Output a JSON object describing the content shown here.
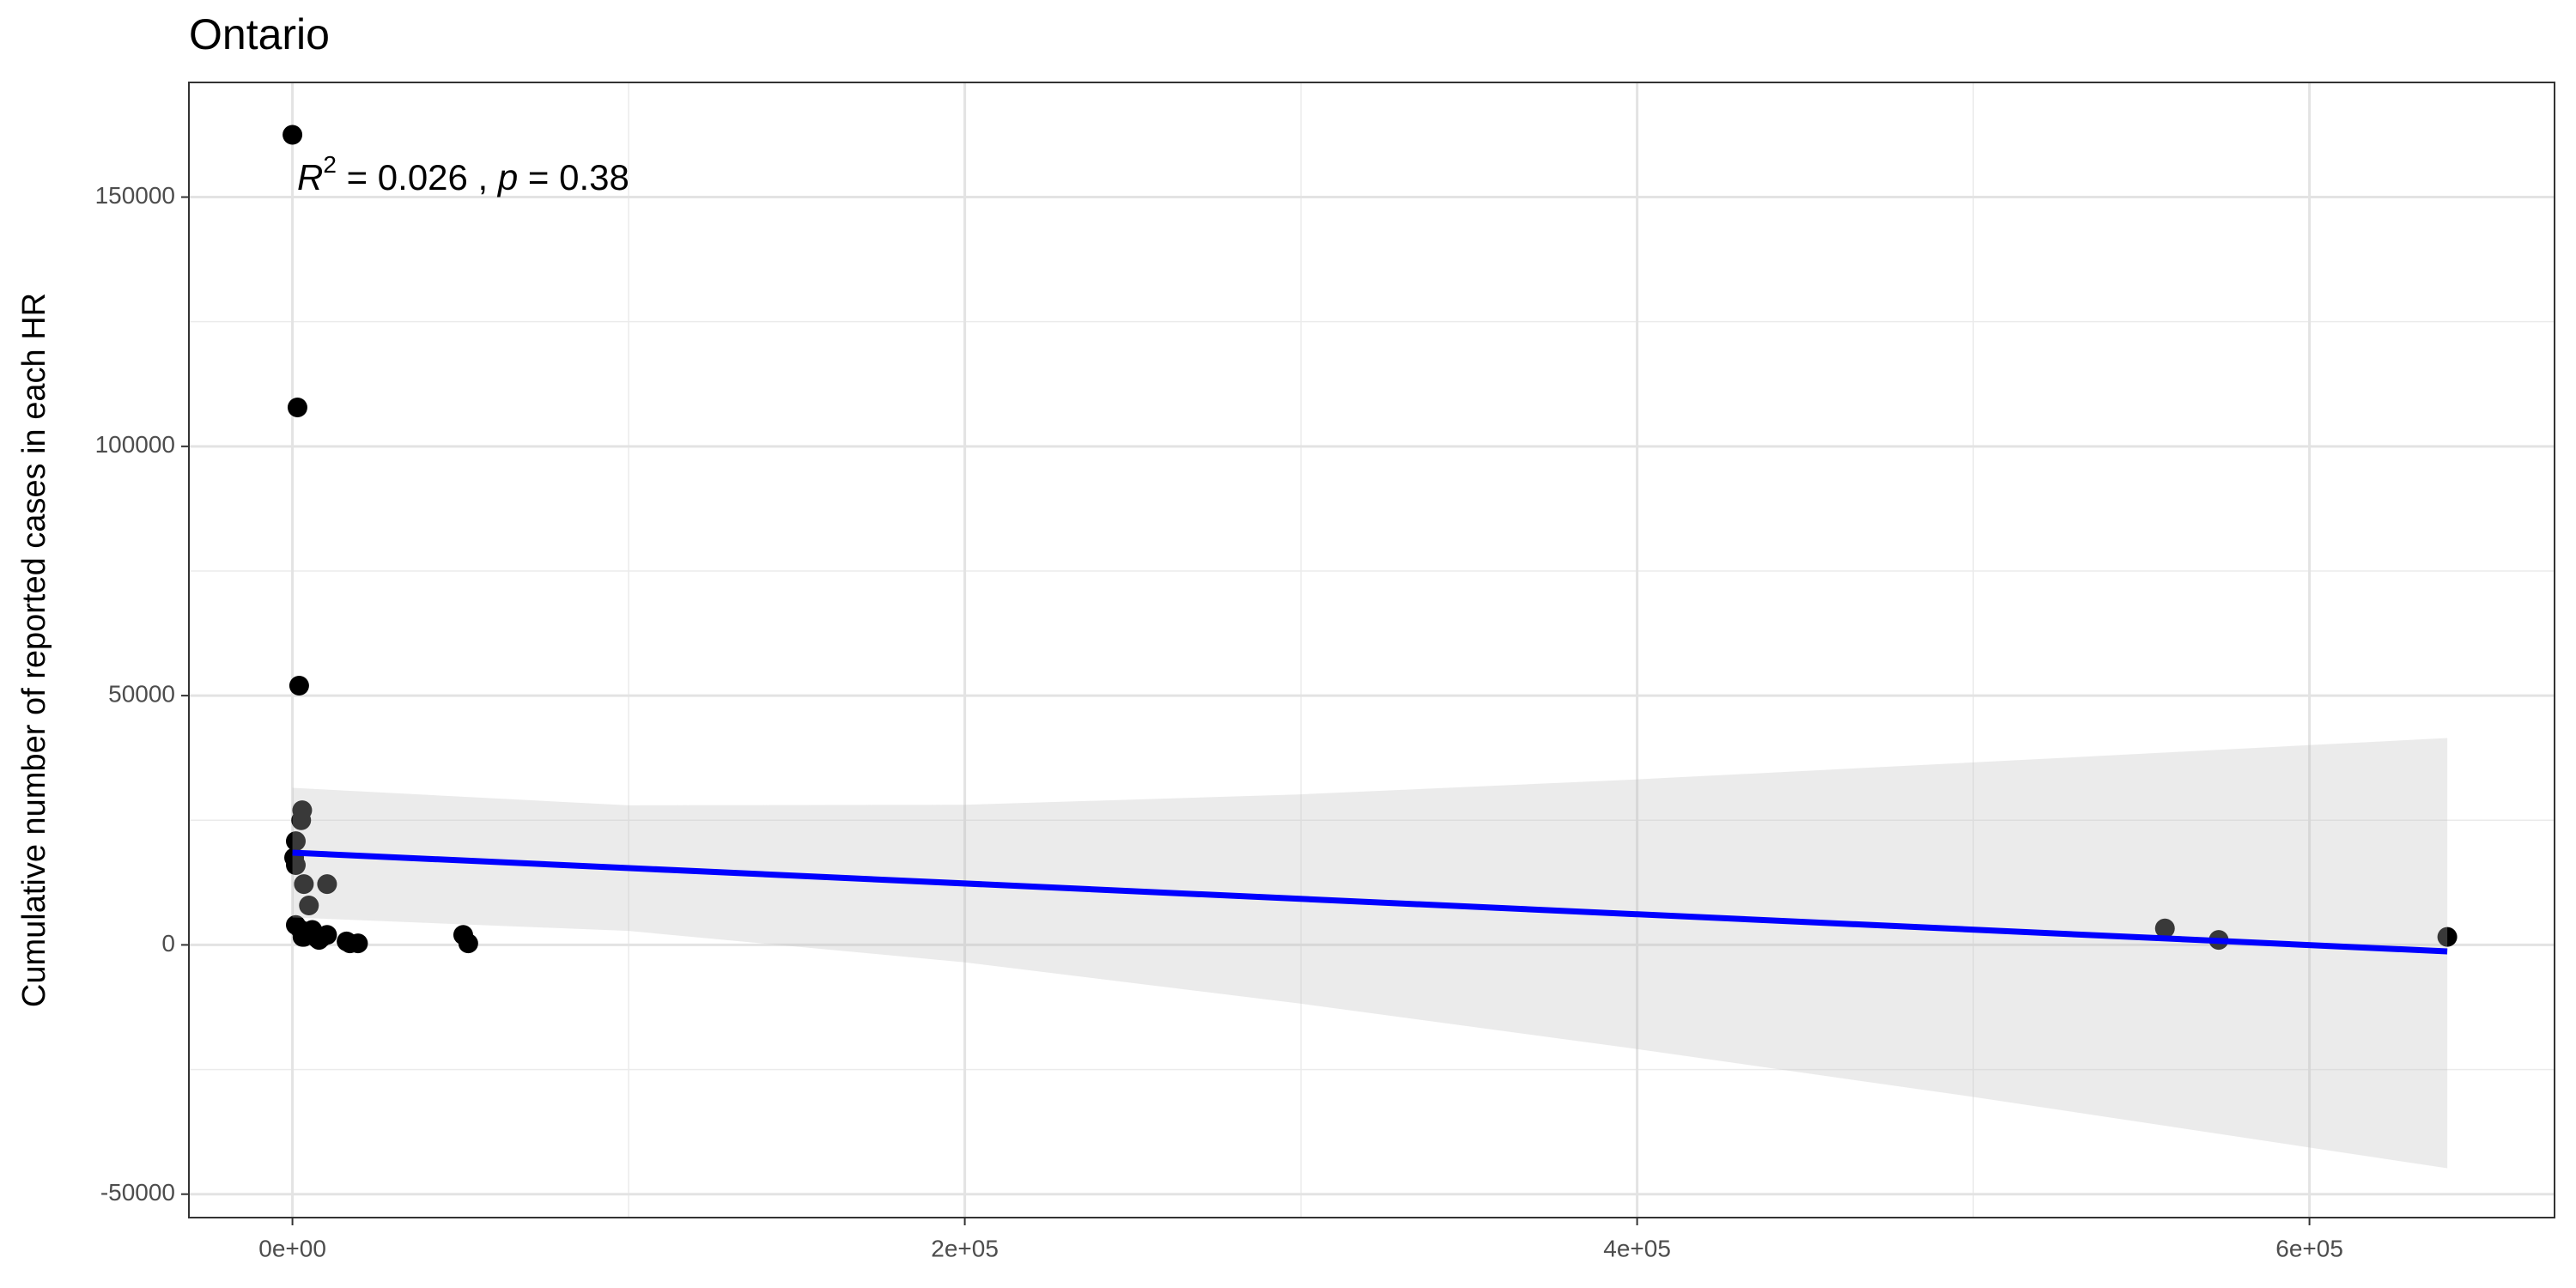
{
  "chart_data": {
    "type": "scatter",
    "title": "Ontario",
    "y_label": "Cumulative number of reported cases in each HR",
    "annotation": {
      "r_label": "R",
      "r_superscript": "2",
      "r_text": " = 0.026 , ",
      "p_label": "p",
      "p_text": " = 0.38"
    },
    "x": [
      0,
      1500,
      2000,
      2900,
      2600,
      1000,
      500,
      1000,
      3400,
      10300,
      4900,
      1000,
      2500,
      5900,
      3400,
      7400,
      8900,
      10300,
      3000,
      7900,
      16100,
      17100,
      19500,
      50800,
      52300,
      557000,
      573000,
      641000
    ],
    "values": [
      162500,
      107800,
      52000,
      27000,
      25000,
      20800,
      17500,
      16000,
      12200,
      12200,
      7900,
      4000,
      3000,
      3000,
      1600,
      1300,
      1600,
      2000,
      1600,
      1000,
      700,
      300,
      300,
      2000,
      300,
      3300,
      1000,
      1600
    ],
    "color": "#000000",
    "fit": {
      "x": [
        0,
        641000
      ],
      "values": [
        18500,
        -1300
      ],
      "color": "#0000ff"
    },
    "band": {
      "x": [
        0,
        100000,
        200000,
        300000,
        400000,
        500000,
        641000
      ],
      "upper": [
        31500,
        28000,
        28100,
        30200,
        33200,
        36600,
        41500
      ],
      "lower": [
        5500,
        2800,
        -3500,
        -11800,
        -20900,
        -30500,
        -44800
      ],
      "color": "#bdbdbd"
    },
    "xlim": [
      -30800,
      672900
    ],
    "ylim": [
      -54700,
      173000
    ],
    "xticks": [
      {
        "value": 0,
        "label": "0e+00"
      },
      {
        "value": 200000,
        "label": "2e+05"
      },
      {
        "value": 400000,
        "label": "4e+05"
      },
      {
        "value": 600000,
        "label": "6e+05"
      }
    ],
    "yticks": [
      -50000,
      0,
      50000,
      100000,
      150000
    ],
    "x_minor_grid": [
      100000,
      300000,
      500000
    ],
    "y_minor_grid": [
      -25000,
      25000,
      75000,
      125000
    ],
    "grid": true
  }
}
